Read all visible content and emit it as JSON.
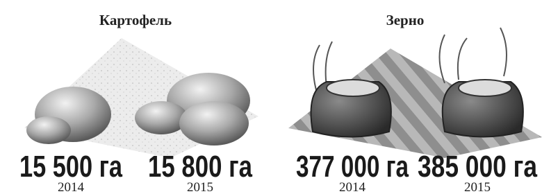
{
  "panels": [
    {
      "title": "Картофель",
      "items": [
        {
          "value_label": "15 500 га",
          "year": "2014"
        },
        {
          "value_label": "15 800 га",
          "year": "2015"
        }
      ]
    },
    {
      "title": "Зерно",
      "items": [
        {
          "value_label": "377 000 га",
          "year": "2014"
        },
        {
          "value_label": "385 000 га",
          "year": "2015"
        }
      ]
    }
  ]
}
